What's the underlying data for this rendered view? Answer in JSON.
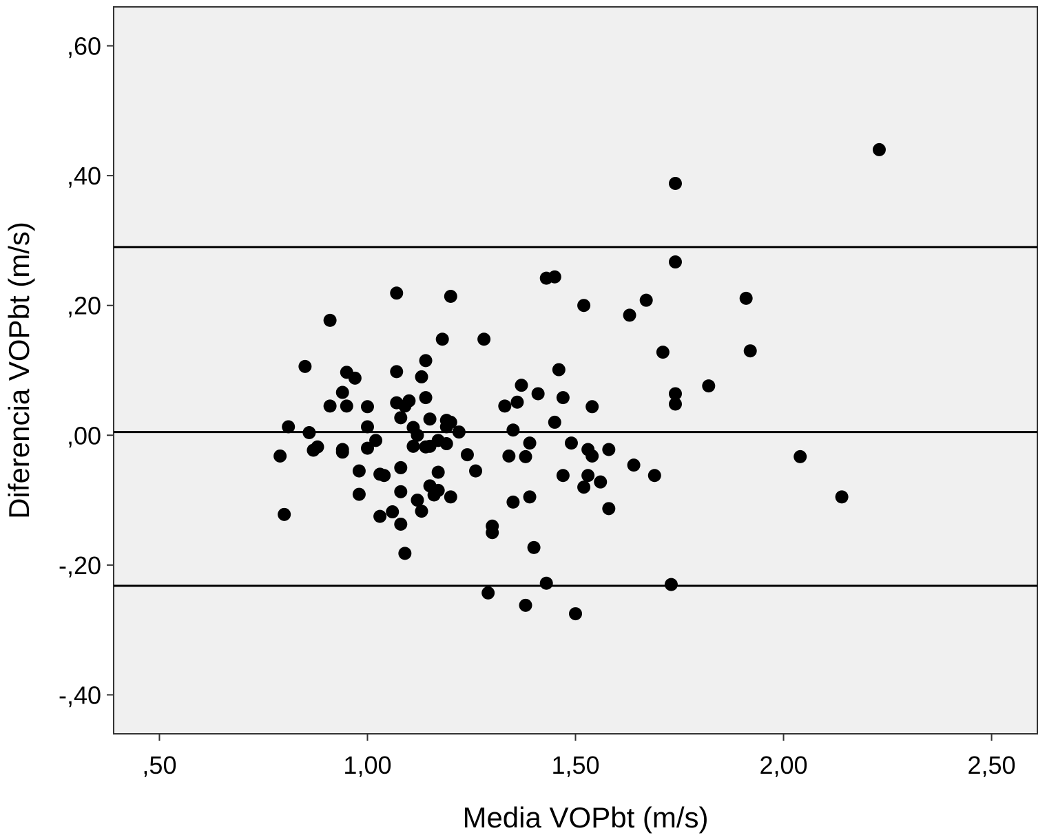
{
  "chart_data": {
    "type": "scatter",
    "title": "",
    "xlabel": "Media VOPbt (m/s)",
    "ylabel": "Diferencia VOPbt (m/s)",
    "xlim": [
      0.39,
      2.61
    ],
    "ylim": [
      -0.46,
      0.66
    ],
    "grid": false,
    "legend": "none",
    "x_ticks": [
      0.5,
      1.0,
      1.5,
      2.0,
      2.5
    ],
    "x_tick_labels": [
      ",50",
      "1,00",
      "1,50",
      "2,00",
      "2,50"
    ],
    "y_ticks": [
      0.6,
      0.4,
      0.2,
      0.0,
      -0.2,
      -0.4
    ],
    "y_tick_labels": [
      ",60",
      ",40",
      ",20",
      ",00",
      "-,20",
      "-,40"
    ],
    "reference_lines": [
      0.29,
      0.005,
      -0.232
    ],
    "colors": {
      "plot_bg": "#f0f0f0",
      "marker": "#000000",
      "line": "#000000"
    },
    "points": [
      [
        2.23,
        0.44
      ],
      [
        1.74,
        0.388
      ],
      [
        1.74,
        0.267
      ],
      [
        1.43,
        0.242
      ],
      [
        1.45,
        0.244
      ],
      [
        1.07,
        0.219
      ],
      [
        1.2,
        0.214
      ],
      [
        1.91,
        0.211
      ],
      [
        1.67,
        0.208
      ],
      [
        1.52,
        0.2
      ],
      [
        1.63,
        0.185
      ],
      [
        0.91,
        0.177
      ],
      [
        1.18,
        0.148
      ],
      [
        1.28,
        0.148
      ],
      [
        1.92,
        0.13
      ],
      [
        1.71,
        0.128
      ],
      [
        1.14,
        0.115
      ],
      [
        0.85,
        0.106
      ],
      [
        1.46,
        0.101
      ],
      [
        0.95,
        0.097
      ],
      [
        1.07,
        0.098
      ],
      [
        1.13,
        0.09
      ],
      [
        0.97,
        0.088
      ],
      [
        1.37,
        0.077
      ],
      [
        1.82,
        0.076
      ],
      [
        0.94,
        0.066
      ],
      [
        1.74,
        0.064
      ],
      [
        1.41,
        0.064
      ],
      [
        1.14,
        0.058
      ],
      [
        1.47,
        0.058
      ],
      [
        1.1,
        0.053
      ],
      [
        1.07,
        0.05
      ],
      [
        1.36,
        0.051
      ],
      [
        1.74,
        0.048
      ],
      [
        0.91,
        0.045
      ],
      [
        0.95,
        0.045
      ],
      [
        1.0,
        0.044
      ],
      [
        1.09,
        0.045
      ],
      [
        1.33,
        0.045
      ],
      [
        1.54,
        0.044
      ],
      [
        1.08,
        0.027
      ],
      [
        1.15,
        0.025
      ],
      [
        1.19,
        0.023
      ],
      [
        1.45,
        0.02
      ],
      [
        0.81,
        0.013
      ],
      [
        1.0,
        0.013
      ],
      [
        1.11,
        0.012
      ],
      [
        1.19,
        0.013
      ],
      [
        1.2,
        0.02
      ],
      [
        1.22,
        0.005
      ],
      [
        1.35,
        0.008
      ],
      [
        0.86,
        0.004
      ],
      [
        1.12,
        0.0
      ],
      [
        1.17,
        -0.008
      ],
      [
        1.02,
        -0.008
      ],
      [
        1.39,
        -0.012
      ],
      [
        1.49,
        -0.012
      ],
      [
        1.19,
        -0.013
      ],
      [
        1.11,
        -0.017
      ],
      [
        1.14,
        -0.018
      ],
      [
        1.15,
        -0.017
      ],
      [
        0.88,
        -0.018
      ],
      [
        0.94,
        -0.022
      ],
      [
        1.0,
        -0.02
      ],
      [
        1.53,
        -0.022
      ],
      [
        1.58,
        -0.022
      ],
      [
        0.87,
        -0.023
      ],
      [
        0.94,
        -0.026
      ],
      [
        1.54,
        -0.032
      ],
      [
        0.79,
        -0.032
      ],
      [
        1.24,
        -0.03
      ],
      [
        1.34,
        -0.032
      ],
      [
        1.38,
        -0.033
      ],
      [
        2.04,
        -0.033
      ],
      [
        1.64,
        -0.046
      ],
      [
        1.08,
        -0.05
      ],
      [
        1.26,
        -0.055
      ],
      [
        0.98,
        -0.055
      ],
      [
        1.17,
        -0.057
      ],
      [
        1.03,
        -0.06
      ],
      [
        1.04,
        -0.062
      ],
      [
        1.47,
        -0.062
      ],
      [
        1.69,
        -0.062
      ],
      [
        1.53,
        -0.062
      ],
      [
        1.56,
        -0.072
      ],
      [
        1.15,
        -0.078
      ],
      [
        1.52,
        -0.08
      ],
      [
        1.17,
        -0.085
      ],
      [
        1.08,
        -0.087
      ],
      [
        0.98,
        -0.091
      ],
      [
        1.16,
        -0.092
      ],
      [
        1.2,
        -0.095
      ],
      [
        1.39,
        -0.095
      ],
      [
        2.14,
        -0.095
      ],
      [
        1.12,
        -0.1
      ],
      [
        1.35,
        -0.103
      ],
      [
        1.58,
        -0.113
      ],
      [
        1.13,
        -0.117
      ],
      [
        1.06,
        -0.118
      ],
      [
        0.8,
        -0.122
      ],
      [
        1.03,
        -0.125
      ],
      [
        1.08,
        -0.137
      ],
      [
        1.3,
        -0.14
      ],
      [
        1.3,
        -0.15
      ],
      [
        1.4,
        -0.173
      ],
      [
        1.09,
        -0.182
      ],
      [
        1.73,
        -0.23
      ],
      [
        1.43,
        -0.228
      ],
      [
        1.29,
        -0.243
      ],
      [
        1.38,
        -0.262
      ],
      [
        1.5,
        -0.275
      ]
    ]
  }
}
